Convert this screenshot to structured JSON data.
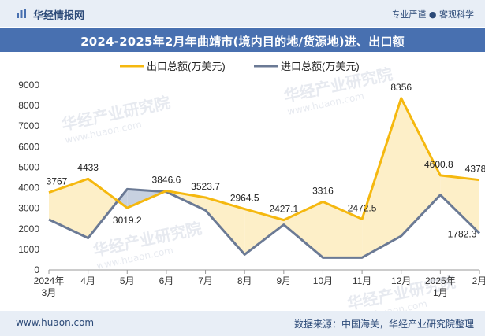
{
  "header": {
    "brand": "华经情报网",
    "tagline_left": "专业严谨",
    "tagline_sep": "●",
    "tagline_right": "客观科学"
  },
  "title": "2024-2025年2月年曲靖市(境内目的地/货源地)进、出口额",
  "footer": {
    "url": "www.huaon.com",
    "source": "数据来源：中国海关，华经产业研究院整理"
  },
  "watermark": {
    "text": "华经产业研究院",
    "sub": "www.huaon.com"
  },
  "colors": {
    "export_line": "#f5b80f",
    "import_line": "#6b7a95",
    "export_fill": "#fdefc8",
    "import_fill": "#c7d1e0"
  },
  "chart_data": {
    "type": "line",
    "categories": [
      "2024年\n3月",
      "4月",
      "5月",
      "6月",
      "7月",
      "8月",
      "9月",
      "10月",
      "11月",
      "12月",
      "2025年\n1月",
      "2月"
    ],
    "series": [
      {
        "name": "出口总额(万美元)",
        "values": [
          3767,
          4433,
          3019.2,
          3846.6,
          3523.7,
          2964.5,
          2427.1,
          3316,
          2472.5,
          8356,
          4600.8,
          4378
        ],
        "labels": [
          "3767",
          "4433",
          "3019.2",
          "3846.6",
          "3523.7",
          "2964.5",
          "2427.1",
          "3316",
          "2472.5",
          "8356",
          "4600.8",
          "4378"
        ]
      },
      {
        "name": "进口总额(万美元)",
        "values": [
          2450,
          1550,
          3930,
          3800,
          2900,
          750,
          2200,
          600,
          600,
          1650,
          3650,
          1782.3
        ],
        "labels": [
          "",
          "",
          "",
          "",
          "",
          "",
          "",
          "",
          "",
          "",
          "",
          "1782.3"
        ]
      }
    ],
    "ylim": [
      0,
      9000
    ],
    "yticks": [
      0,
      1000,
      2000,
      3000,
      4000,
      5000,
      6000,
      7000,
      8000,
      9000
    ],
    "legend": "top-center"
  }
}
